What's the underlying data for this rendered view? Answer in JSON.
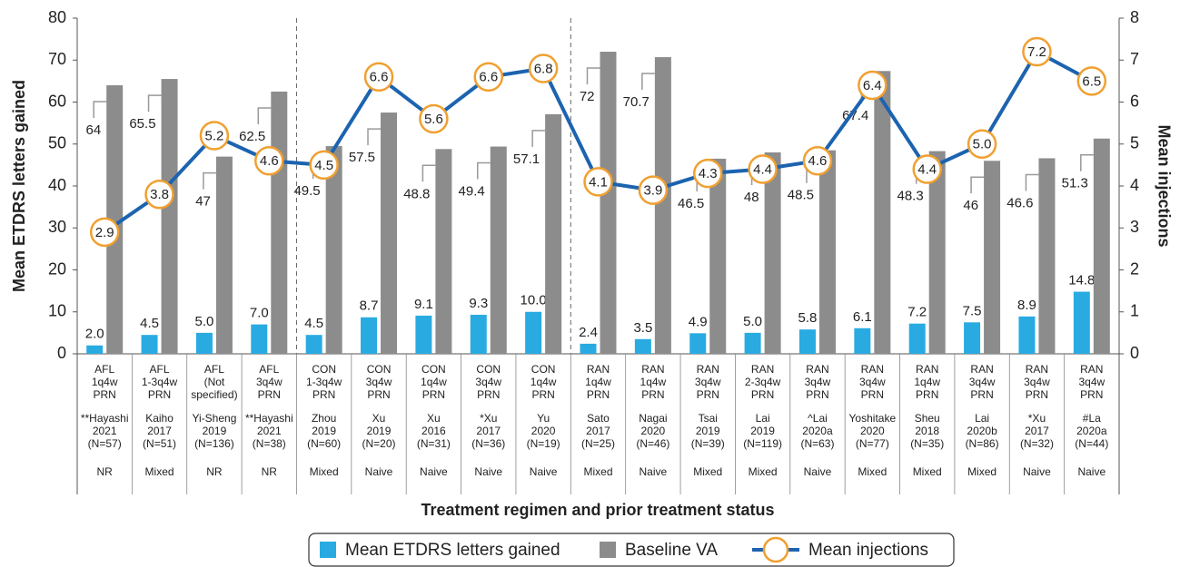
{
  "chart_data": {
    "type": "bar-line",
    "y_title": "Mean ETDRS letters gained",
    "y2_title": "Mean injections",
    "x_title": "Treatment regimen and prior treatment status",
    "categories": [
      [
        "AFL",
        "1q4w",
        "PRN"
      ],
      [
        "AFL",
        "1-3q4w",
        "PRN"
      ],
      [
        "AFL",
        "(Not",
        "specified)"
      ],
      [
        "AFL",
        "3q4w",
        "PRN"
      ],
      [
        "CON",
        "1-3q4w",
        "PRN"
      ],
      [
        "CON",
        "3q4w",
        "PRN"
      ],
      [
        "CON",
        "1q4w",
        "PRN"
      ],
      [
        "CON",
        "3q4w",
        "PRN"
      ],
      [
        "CON",
        "1q4w",
        "PRN"
      ],
      [
        "RAN",
        "1q4w",
        "PRN"
      ],
      [
        "RAN",
        "1q4w",
        "PRN"
      ],
      [
        "RAN",
        "3q4w",
        "PRN"
      ],
      [
        "RAN",
        "2-3q4w",
        "PRN"
      ],
      [
        "RAN",
        "3q4w",
        "PRN"
      ],
      [
        "RAN",
        "3q4w",
        "PRN"
      ],
      [
        "RAN",
        "1q4w",
        "PRN"
      ],
      [
        "RAN",
        "3q4w",
        "PRN"
      ],
      [
        "RAN",
        "3q4w",
        "PRN"
      ],
      [
        "RAN",
        "3q4w",
        "PRN"
      ]
    ],
    "studies": [
      [
        "**Hayashi",
        "2021",
        "(N=57)"
      ],
      [
        "Kaiho",
        "2017",
        "(N=51)"
      ],
      [
        "Yi-Sheng",
        "2019",
        "(N=136)"
      ],
      [
        "**Hayashi",
        "2021",
        "(N=38)"
      ],
      [
        "Zhou",
        "2019",
        "(N=60)"
      ],
      [
        "Xu",
        "2019",
        "(N=20)"
      ],
      [
        "Xu",
        "2016",
        "(N=31)"
      ],
      [
        "*Xu",
        "2017",
        "(N=36)"
      ],
      [
        "Yu",
        "2020",
        "(N=19)"
      ],
      [
        "Sato",
        "2017",
        "(N=25)"
      ],
      [
        "Nagai",
        "2020",
        "(N=46)"
      ],
      [
        "Tsai",
        "2019",
        "(N=39)"
      ],
      [
        "Lai",
        "2019",
        "(N=119)"
      ],
      [
        "^Lai",
        "2020a",
        "(N=63)"
      ],
      [
        "Yoshitake",
        "2020",
        "(N=77)"
      ],
      [
        "Sheu",
        "2018",
        "(N=35)"
      ],
      [
        "Lai",
        "2020b",
        "(N=86)"
      ],
      [
        "*Xu",
        "2017",
        "(N=32)"
      ],
      [
        "#La",
        "2020a",
        "(N=44)"
      ]
    ],
    "statuses": [
      "NR",
      "Mixed",
      "NR",
      "NR",
      "Mixed",
      "Naive",
      "Naive",
      "Naive",
      "Naive",
      "Mixed",
      "Naive",
      "Mixed",
      "Mixed",
      "Naive",
      "Mixed",
      "Mixed",
      "Mixed",
      "Naive",
      "Naive"
    ],
    "series": [
      {
        "name": "Mean ETDRS letters gained",
        "color": "#29abe2",
        "kind": "bar",
        "values": [
          2.0,
          4.5,
          5.0,
          7.0,
          4.5,
          8.7,
          9.1,
          9.3,
          10.0,
          2.4,
          3.5,
          4.9,
          5.0,
          5.8,
          6.1,
          7.2,
          7.5,
          8.9,
          14.8
        ],
        "value_labels": [
          "2.0",
          "4.5",
          "5.0",
          "7.0",
          "4.5",
          "8.7",
          "9.1",
          "9.3",
          "10.0",
          "2.4",
          "3.5",
          "4.9",
          "5.0",
          "5.8",
          "6.1",
          "7.2",
          "7.5",
          "8.9",
          "14.8"
        ]
      },
      {
        "name": "Baseline VA",
        "color": "#8c8c8c",
        "kind": "bar",
        "values": [
          64,
          65.5,
          47,
          62.5,
          49.5,
          57.5,
          48.8,
          49.4,
          57.1,
          72,
          70.7,
          46.5,
          48,
          48.5,
          67.4,
          48.3,
          46,
          46.6,
          51.3
        ]
      },
      {
        "name": "Mean injections",
        "color": "#1c63b0",
        "marker_color": "#f0a030",
        "kind": "line",
        "axis": "y2",
        "values": [
          2.9,
          3.8,
          5.2,
          4.6,
          4.5,
          6.6,
          5.6,
          6.6,
          6.8,
          4.1,
          3.9,
          4.3,
          4.4,
          4.6,
          6.4,
          4.4,
          5.0,
          7.2,
          6.5
        ],
        "value_labels": [
          "2.9",
          "3.8",
          "5.2",
          "4.6",
          "4.5",
          "6.6",
          "5.6",
          "6.6",
          "6.8",
          "4.1",
          "3.9",
          "4.3",
          "4.4",
          "4.6",
          "6.4",
          "4.4",
          "5.0",
          "7.2",
          "6.5"
        ]
      }
    ],
    "ylim": [
      0,
      80
    ],
    "yticks": [
      0,
      10,
      20,
      30,
      40,
      50,
      60,
      70,
      80
    ],
    "y2lim": [
      0,
      8
    ],
    "y2ticks": [
      0,
      1,
      2,
      3,
      4,
      5,
      6,
      7,
      8
    ]
  }
}
